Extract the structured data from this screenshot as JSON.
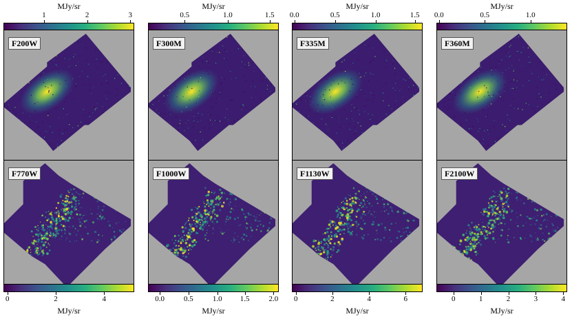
{
  "colormap_accent": "#fde725",
  "background_color": "#a6a6a6",
  "top_row": [
    {
      "filter": "F200W",
      "cbar_title": "MJy/sr",
      "ticks": [
        {
          "label": "1",
          "frac": 0.31
        },
        {
          "label": "2",
          "frac": 0.64
        },
        {
          "label": "3",
          "frac": 0.97
        }
      ]
    },
    {
      "filter": "F300M",
      "cbar_title": "MJy/sr",
      "ticks": [
        {
          "label": "0.5",
          "frac": 0.28
        },
        {
          "label": "1.0",
          "frac": 0.61
        },
        {
          "label": "1.5",
          "frac": 0.93
        }
      ]
    },
    {
      "filter": "F335M",
      "cbar_title": "MJy/sr",
      "ticks": [
        {
          "label": "0.0",
          "frac": 0.02
        },
        {
          "label": "0.5",
          "frac": 0.33
        },
        {
          "label": "1.0",
          "frac": 0.64
        },
        {
          "label": "1.5",
          "frac": 0.94
        }
      ]
    },
    {
      "filter": "F360M",
      "cbar_title": "MJy/sr",
      "ticks": [
        {
          "label": "0.0",
          "frac": 0.02
        },
        {
          "label": "0.5",
          "frac": 0.37
        },
        {
          "label": "1.0",
          "frac": 0.72
        }
      ]
    }
  ],
  "bottom_row": [
    {
      "filter": "F770W",
      "cbar_title": "MJy/sr",
      "ticks": [
        {
          "label": "0",
          "frac": 0.03
        },
        {
          "label": "2",
          "frac": 0.4
        },
        {
          "label": "4",
          "frac": 0.77
        }
      ]
    },
    {
      "filter": "F1000W",
      "cbar_title": "MJy/sr",
      "ticks": [
        {
          "label": "0.0",
          "frac": 0.09
        },
        {
          "label": "0.5",
          "frac": 0.31
        },
        {
          "label": "1.0",
          "frac": 0.53
        },
        {
          "label": "1.5",
          "frac": 0.74
        },
        {
          "label": "2.0",
          "frac": 0.96
        }
      ]
    },
    {
      "filter": "F1130W",
      "cbar_title": "MJy/sr",
      "ticks": [
        {
          "label": "0",
          "frac": 0.03
        },
        {
          "label": "2",
          "frac": 0.31
        },
        {
          "label": "4",
          "frac": 0.59
        },
        {
          "label": "6",
          "frac": 0.87
        }
      ]
    },
    {
      "filter": "F2100W",
      "cbar_title": "MJy/sr",
      "ticks": [
        {
          "label": "0",
          "frac": 0.13
        },
        {
          "label": "1",
          "frac": 0.34
        },
        {
          "label": "2",
          "frac": 0.55
        },
        {
          "label": "3",
          "frac": 0.76
        },
        {
          "label": "4",
          "frac": 0.97
        }
      ]
    }
  ]
}
